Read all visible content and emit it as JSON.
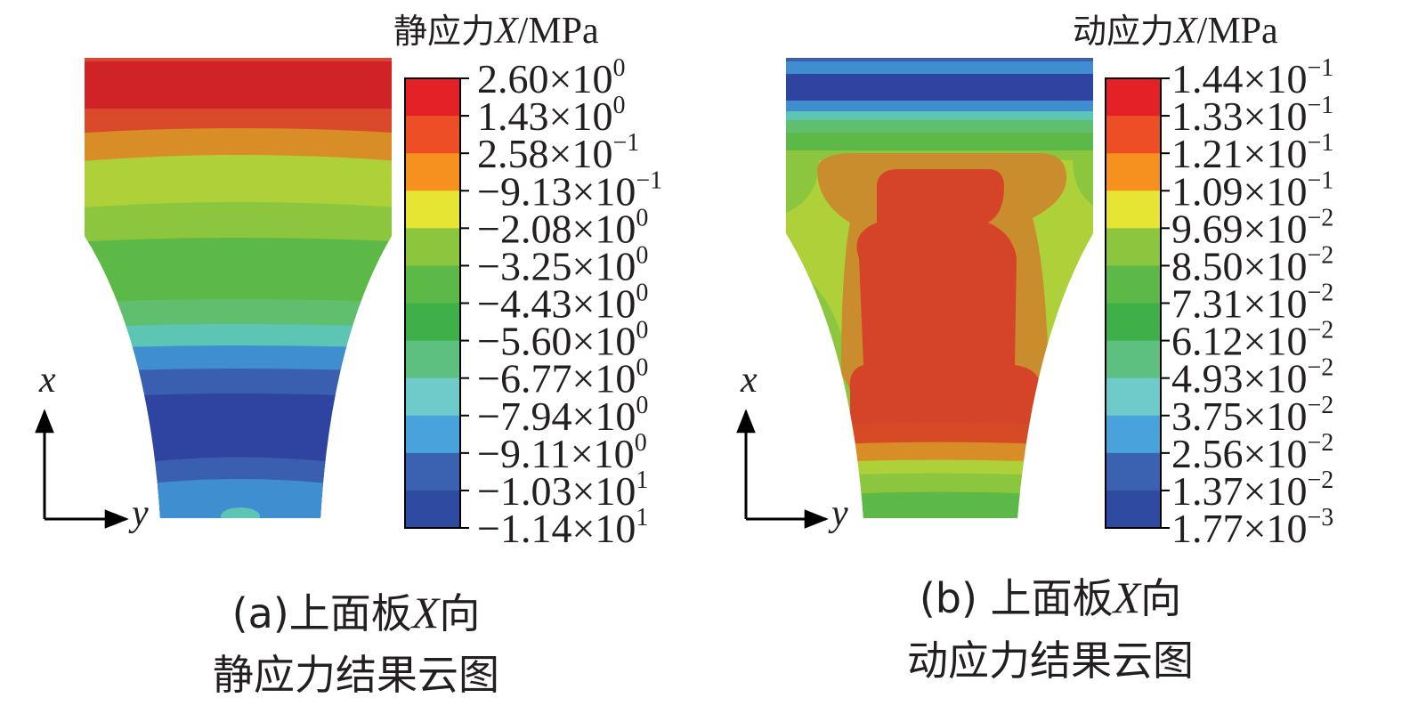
{
  "panels": [
    {
      "id": "a",
      "legend_title": {
        "prefix": "静应力",
        "var": "X",
        "unit": "/MPa"
      },
      "legend_labels": [
        {
          "sign": "",
          "mant": "2.60",
          "times": "×10",
          "exp": "0"
        },
        {
          "sign": "",
          "mant": "1.43",
          "times": "×10",
          "exp": "0"
        },
        {
          "sign": "",
          "mant": "2.58",
          "times": "×10",
          "exp": "−1"
        },
        {
          "sign": "−",
          "mant": "9.13",
          "times": "×10",
          "exp": "−1"
        },
        {
          "sign": "−",
          "mant": "2.08",
          "times": "×10",
          "exp": "0"
        },
        {
          "sign": "−",
          "mant": "3.25",
          "times": "×10",
          "exp": "0"
        },
        {
          "sign": "−",
          "mant": "4.43",
          "times": "×10",
          "exp": "0"
        },
        {
          "sign": "−",
          "mant": "5.60",
          "times": "×10",
          "exp": "0"
        },
        {
          "sign": "−",
          "mant": "6.77",
          "times": "×10",
          "exp": "0"
        },
        {
          "sign": "−",
          "mant": "7.94",
          "times": "×10",
          "exp": "0"
        },
        {
          "sign": "−",
          "mant": "9.11",
          "times": "×10",
          "exp": "0"
        },
        {
          "sign": "−",
          "mant": "1.03",
          "times": "×10",
          "exp": "1"
        },
        {
          "sign": "−",
          "mant": "1.14",
          "times": "×10",
          "exp": "1"
        }
      ],
      "axis_x_label": "x",
      "axis_y_label": "y",
      "caption_line1": {
        "prefix": "(a)上面板",
        "var": "X",
        "suffix": "向"
      },
      "caption_line2": "静应力结果云图"
    },
    {
      "id": "b",
      "legend_title": {
        "prefix": "动应力",
        "var": "X",
        "unit": "/MPa"
      },
      "legend_labels": [
        {
          "sign": "",
          "mant": "1.44",
          "times": "×10",
          "exp": "−1"
        },
        {
          "sign": "",
          "mant": "1.33",
          "times": "×10",
          "exp": "−1"
        },
        {
          "sign": "",
          "mant": "1.21",
          "times": "×10",
          "exp": "−1"
        },
        {
          "sign": "",
          "mant": "1.09",
          "times": "×10",
          "exp": "−1"
        },
        {
          "sign": "",
          "mant": "9.69",
          "times": "×10",
          "exp": "−2"
        },
        {
          "sign": "",
          "mant": "8.50",
          "times": "×10",
          "exp": "−2"
        },
        {
          "sign": "",
          "mant": "7.31",
          "times": "×10",
          "exp": "−2"
        },
        {
          "sign": "",
          "mant": "6.12",
          "times": "×10",
          "exp": "−2"
        },
        {
          "sign": "",
          "mant": "4.93",
          "times": "×10",
          "exp": "−2"
        },
        {
          "sign": "",
          "mant": "3.75",
          "times": "×10",
          "exp": "−2"
        },
        {
          "sign": "",
          "mant": "2.56",
          "times": "×10",
          "exp": "−2"
        },
        {
          "sign": "",
          "mant": "1.37",
          "times": "×10",
          "exp": "−2"
        },
        {
          "sign": "",
          "mant": "1.77",
          "times": "×10",
          "exp": "−3"
        }
      ],
      "axis_x_label": "x",
      "axis_y_label": "y",
      "caption_line1": {
        "prefix": "(b) 上面板",
        "var": "X",
        "suffix": "向"
      },
      "caption_line2": "动应力结果云图"
    }
  ],
  "colorbar_colors": [
    "#e32126",
    "#ee4e25",
    "#f6901e",
    "#e7e534",
    "#8cc63e",
    "#5cb947",
    "#3faf49",
    "#5dc080",
    "#6fcbc9",
    "#48a2dc",
    "#3a62b0",
    "#2f4ba1"
  ]
}
